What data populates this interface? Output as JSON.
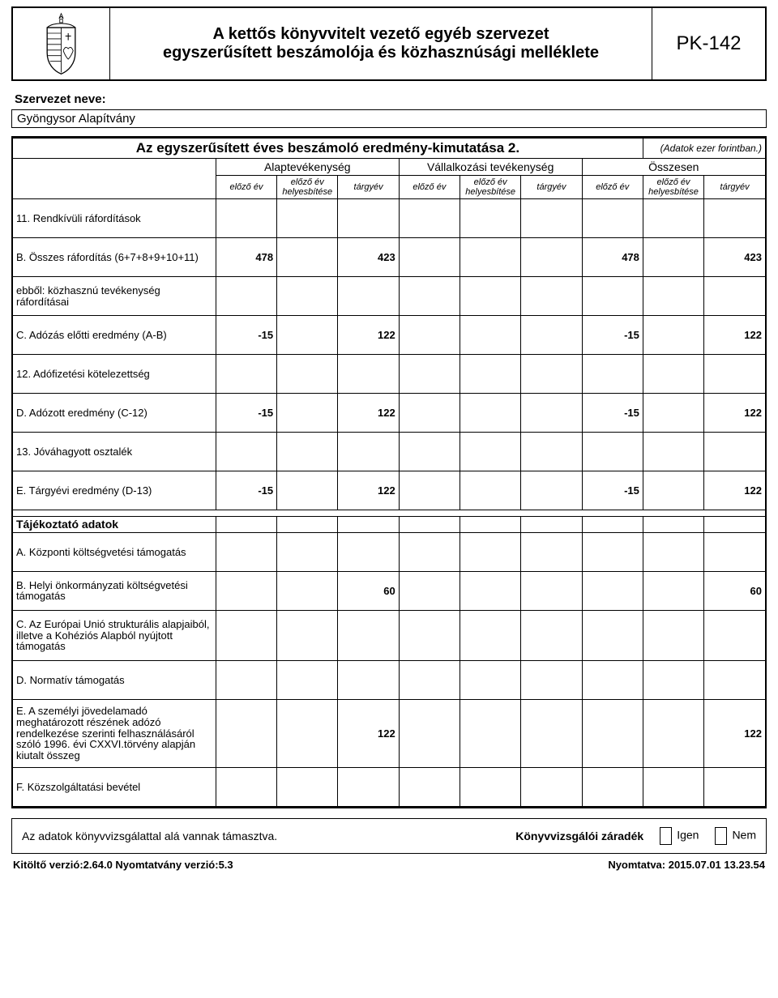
{
  "header": {
    "title_line1": "A kettős könyvvitelt vezető egyéb szervezet",
    "title_line2": "egyszerűsített beszámolója és közhasznúsági melléklete",
    "code": "PK-142"
  },
  "org": {
    "label": "Szervezet neve:",
    "name": "Gyöngysor Alapítvány"
  },
  "table": {
    "title": "Az egyszerűsített éves beszámoló eredmény-kimutatása 2.",
    "unit_note": "(Adatok ezer forintban.)",
    "groups": {
      "g1": "Alaptevékenység",
      "g2": "Vállalkozási tevékenység",
      "g3": "Összesen"
    },
    "cols": {
      "c1": "előző év",
      "c2a": "előző év",
      "c2b": "helyesbítése",
      "c3": "tárgyév"
    },
    "section_info": "Tájékoztató adatok",
    "rows": {
      "r11": {
        "label": "11. Rendkívüli ráfordítások",
        "v": [
          "",
          "",
          "",
          "",
          "",
          "",
          "",
          "",
          ""
        ]
      },
      "rB": {
        "label": "B. Összes ráfordítás (6+7+8+9+10+11)",
        "v": [
          "478",
          "",
          "423",
          "",
          "",
          "",
          "478",
          "",
          "423"
        ]
      },
      "rBk": {
        "label": "ebből: közhasznú tevékenység ráfordításai",
        "v": [
          "",
          "",
          "",
          "",
          "",
          "",
          "",
          "",
          ""
        ]
      },
      "rC": {
        "label": "C. Adózás előtti eredmény (A-B)",
        "v": [
          "-15",
          "",
          "122",
          "",
          "",
          "",
          "-15",
          "",
          "122"
        ]
      },
      "r12": {
        "label": "12. Adófizetési kötelezettség",
        "v": [
          "",
          "",
          "",
          "",
          "",
          "",
          "",
          "",
          ""
        ]
      },
      "rD": {
        "label": "D. Adózott eredmény (C-12)",
        "v": [
          "-15",
          "",
          "122",
          "",
          "",
          "",
          "-15",
          "",
          "122"
        ]
      },
      "r13": {
        "label": "13. Jóváhagyott osztalék",
        "v": [
          "",
          "",
          "",
          "",
          "",
          "",
          "",
          "",
          ""
        ]
      },
      "rE": {
        "label": "E. Tárgyévi eredmény (D-13)",
        "v": [
          "-15",
          "",
          "122",
          "",
          "",
          "",
          "-15",
          "",
          "122"
        ]
      },
      "iA": {
        "label": "A. Központi költségvetési támogatás",
        "v": [
          "",
          "",
          "",
          "",
          "",
          "",
          "",
          "",
          ""
        ]
      },
      "iB": {
        "label": "B. Helyi önkormányzati költségvetési támogatás",
        "v": [
          "",
          "",
          "60",
          "",
          "",
          "",
          "",
          "",
          "60"
        ]
      },
      "iC": {
        "label": "C. Az Európai Unió strukturális alapjaiból, illetve a Kohéziós Alapból nyújtott támogatás",
        "v": [
          "",
          "",
          "",
          "",
          "",
          "",
          "",
          "",
          ""
        ]
      },
      "iD": {
        "label": "D. Normatív támogatás",
        "v": [
          "",
          "",
          "",
          "",
          "",
          "",
          "",
          "",
          ""
        ]
      },
      "iE": {
        "label": "E. A személyi jövedelamadó meghatározott részének adózó rendelkezése szerinti felhasználásáról szóló 1996. évi CXXVI.törvény alapján kiutalt összeg",
        "v": [
          "",
          "",
          "122",
          "",
          "",
          "",
          "",
          "",
          "122"
        ]
      },
      "iF": {
        "label": "F. Közszolgáltatási bevétel",
        "v": [
          "",
          "",
          "",
          "",
          "",
          "",
          "",
          "",
          ""
        ]
      }
    }
  },
  "footer": {
    "audit_text": "Az adatok könyvvizsgálattal alá vannak támasztva.",
    "kz": "Könyvvizsgálói záradék",
    "yes": "Igen",
    "no": "Nem"
  },
  "meta": {
    "left": "Kitöltő verzió:2.64.0 Nyomtatvány verzió:5.3",
    "right": "Nyomtatva: 2015.07.01 13.23.54"
  },
  "style": {
    "border_color": "#000000",
    "label_col_width": 246,
    "data_col_width": 74
  }
}
